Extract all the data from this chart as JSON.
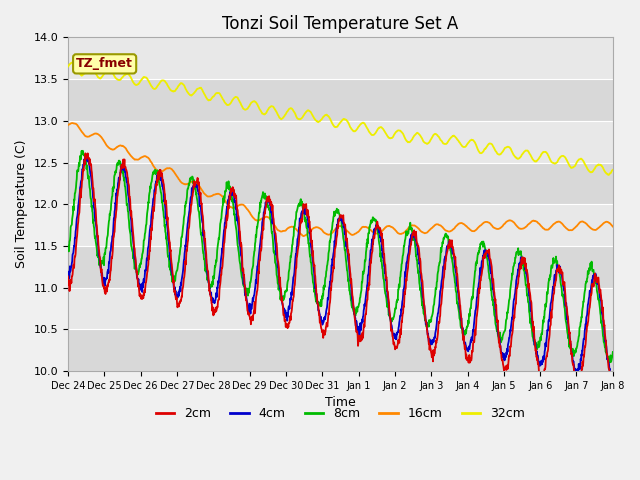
{
  "title": "Tonzi Soil Temperature Set A",
  "xlabel": "Time",
  "ylabel": "Soil Temperature (C)",
  "ylim": [
    10.0,
    14.0
  ],
  "yticks": [
    10.0,
    10.5,
    11.0,
    11.5,
    12.0,
    12.5,
    13.0,
    13.5,
    14.0
  ],
  "date_labels": [
    "Dec 24",
    "Dec 25",
    "Dec 26",
    "Dec 27",
    "Dec 28",
    "Dec 29",
    "Dec 30",
    "Dec 31",
    "Jan 1",
    "Jan 2",
    "Jan 3",
    "Jan 4",
    "Jan 5",
    "Jan 6",
    "Jan 7",
    "Jan 8"
  ],
  "series_colors": [
    "#dd0000",
    "#0000cc",
    "#00bb00",
    "#ff8800",
    "#eeee00"
  ],
  "series_labels": [
    "2cm",
    "4cm",
    "8cm",
    "16cm",
    "32cm"
  ],
  "legend_label": "TZ_fmet",
  "legend_text_color": "#880000",
  "legend_bg_color": "#ffffaa",
  "legend_border_color": "#999900",
  "fig_bg_color": "#f0f0f0",
  "plot_bg_color": "#e0e0e0",
  "band_light_color": "#e8e8e8",
  "band_dark_color": "#d8d8d8",
  "grid_color": "#ffffff",
  "title_fontsize": 12,
  "axis_label_fontsize": 9,
  "tick_fontsize": 8,
  "legend_fontsize": 9
}
